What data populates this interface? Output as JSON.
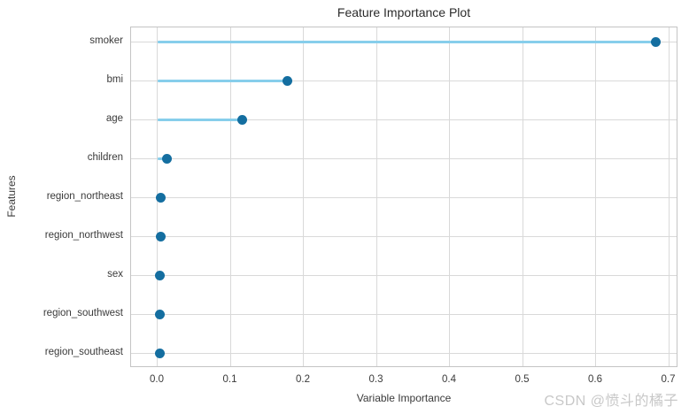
{
  "page": {
    "background": "#ffffff"
  },
  "chart_data": {
    "type": "lollipop",
    "orientation": "horizontal",
    "title": "Feature Importance Plot",
    "xlabel": "Variable Importance",
    "ylabel": "Features",
    "categories": [
      "smoker",
      "bmi",
      "age",
      "children",
      "region_northeast",
      "region_northwest",
      "sex",
      "region_southwest",
      "region_southeast"
    ],
    "values": [
      0.682,
      0.178,
      0.116,
      0.013,
      0.004,
      0.004,
      0.003,
      0.003,
      0.003
    ],
    "xticks": [
      0.0,
      0.1,
      0.2,
      0.3,
      0.4,
      0.5,
      0.6,
      0.7
    ],
    "xtick_labels": [
      "0.0",
      "0.1",
      "0.2",
      "0.3",
      "0.4",
      "0.5",
      "0.6",
      "0.7"
    ],
    "xlim": [
      -0.03636,
      0.71273
    ],
    "grid": true,
    "legend": "none",
    "colors": {
      "stem": "#87ceeb",
      "dot": "#146ea0",
      "grid": "#d9d9d9",
      "spine": "#c4c4c4",
      "text": "#3a3a3a",
      "title": "#2b2b2b"
    }
  },
  "watermark": {
    "text": "CSDN @愤斗的橘子",
    "color": "#c8c8c8"
  }
}
